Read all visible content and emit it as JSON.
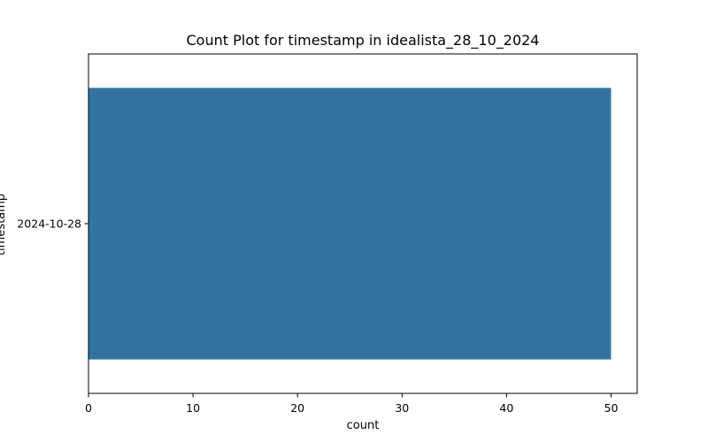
{
  "chart_data": {
    "type": "bar",
    "orientation": "horizontal",
    "title": "Count Plot for timestamp in idealista_28_10_2024",
    "xlabel": "count",
    "ylabel": "timestamp",
    "categories": [
      "2024-10-28"
    ],
    "values": [
      50
    ],
    "xlim": [
      0,
      52.5
    ],
    "xticks": [
      0,
      10,
      20,
      30,
      40,
      50
    ],
    "grid": false,
    "legend": "none",
    "bar_color": "#3274a1"
  }
}
